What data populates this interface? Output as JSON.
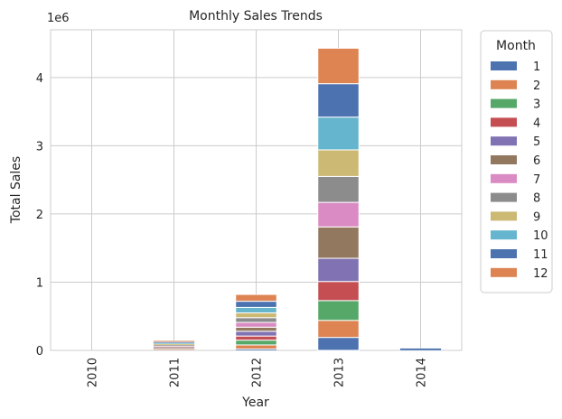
{
  "chart_data": {
    "type": "bar",
    "stacked": true,
    "title": "Monthly Sales Trends",
    "xlabel": "Year",
    "ylabel": "Total Sales",
    "y_offset_label": "1e6",
    "ylim": [
      0,
      4.7
    ],
    "yticks": [
      0,
      1,
      2,
      3,
      4
    ],
    "grid": true,
    "legend_title": "Month",
    "legend_position": "outside-top-right",
    "categories": [
      "2010",
      "2011",
      "2012",
      "2013",
      "2014"
    ],
    "series": [
      {
        "name": "1",
        "color": "#4C72B0",
        "values": [
          0,
          0.005,
          0.02,
          0.19,
          0.03
        ]
      },
      {
        "name": "2",
        "color": "#DD8452",
        "values": [
          0,
          0.01,
          0.06,
          0.25,
          0
        ]
      },
      {
        "name": "3",
        "color": "#55A868",
        "values": [
          0,
          0.01,
          0.07,
          0.29,
          0
        ]
      },
      {
        "name": "4",
        "color": "#C44E52",
        "values": [
          0,
          0.01,
          0.06,
          0.28,
          0
        ]
      },
      {
        "name": "5",
        "color": "#8172B3",
        "values": [
          0,
          0.01,
          0.07,
          0.34,
          0
        ]
      },
      {
        "name": "6",
        "color": "#937860",
        "values": [
          0,
          0.01,
          0.06,
          0.46,
          0
        ]
      },
      {
        "name": "7",
        "color": "#DA8BC3",
        "values": [
          0,
          0.01,
          0.07,
          0.36,
          0
        ]
      },
      {
        "name": "8",
        "color": "#8C8C8C",
        "values": [
          0,
          0.015,
          0.07,
          0.38,
          0
        ]
      },
      {
        "name": "9",
        "color": "#CCB974",
        "values": [
          0,
          0.015,
          0.07,
          0.39,
          0
        ]
      },
      {
        "name": "10",
        "color": "#64B5CD",
        "values": [
          0,
          0.015,
          0.08,
          0.48,
          0
        ]
      },
      {
        "name": "11",
        "color": "#4C72B0",
        "values": [
          0,
          0.015,
          0.09,
          0.49,
          0
        ]
      },
      {
        "name": "12",
        "color": "#DD8452",
        "values": [
          0,
          0.015,
          0.1,
          0.52,
          0
        ]
      }
    ]
  }
}
